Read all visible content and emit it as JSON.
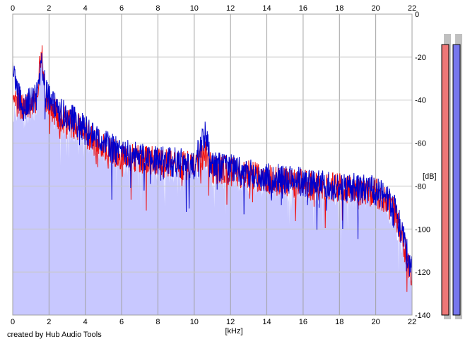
{
  "chart_data": {
    "type": "line",
    "title": "",
    "xlabel": "[kHz]",
    "ylabel": "[dB]",
    "xlim": [
      0,
      22
    ],
    "ylim": [
      -140,
      0
    ],
    "x_ticks": [
      "0",
      "2",
      "4",
      "6",
      "8",
      "10",
      "12",
      "14",
      "16",
      "18",
      "20",
      "22"
    ],
    "y_ticks": [
      "0",
      "-20",
      "-40",
      "-60",
      "-80",
      "-100",
      "-120",
      "-140"
    ],
    "grid": true,
    "fill_color": "#c8c8ff",
    "series": [
      {
        "color": "#ee1111",
        "x": [
          0,
          0.3,
          0.6,
          1.0,
          1.3,
          1.6,
          1.8,
          2.0,
          2.5,
          3.0,
          3.5,
          4.0,
          5.0,
          6.0,
          7.0,
          8.0,
          9.0,
          10.0,
          10.6,
          11.0,
          12.0,
          13.0,
          14.0,
          15.0,
          16.0,
          17.0,
          18.0,
          19.0,
          20.0,
          20.5,
          21.0,
          21.5,
          22.0
        ],
        "values": [
          -45,
          -40,
          -45,
          -42,
          -40,
          -17,
          -38,
          -42,
          -47,
          -50,
          -52,
          -55,
          -62,
          -66,
          -67,
          -69,
          -70,
          -71,
          -64,
          -72,
          -73,
          -75,
          -77,
          -78,
          -79,
          -80,
          -81,
          -82,
          -83,
          -86,
          -92,
          -105,
          -123
        ]
      },
      {
        "color": "#0000cc",
        "x": [
          0,
          0.3,
          0.6,
          1.0,
          1.3,
          1.6,
          1.8,
          2.0,
          2.5,
          3.0,
          3.5,
          4.0,
          5.0,
          6.0,
          7.0,
          8.0,
          9.0,
          10.0,
          10.6,
          11.0,
          12.0,
          13.0,
          14.0,
          15.0,
          16.0,
          17.0,
          18.0,
          19.0,
          20.0,
          20.5,
          21.0,
          21.5,
          22.0
        ],
        "values": [
          -25,
          -38,
          -43,
          -40,
          -38,
          -20,
          -36,
          -40,
          -45,
          -48,
          -50,
          -54,
          -60,
          -65,
          -66,
          -68,
          -69,
          -70,
          -56,
          -71,
          -72,
          -74,
          -76,
          -77,
          -78,
          -79,
          -80,
          -81,
          -82,
          -85,
          -90,
          -103,
          -120
        ]
      }
    ],
    "meters": [
      {
        "color": "#ee7777",
        "level": 0.95
      },
      {
        "color": "#7777ee",
        "level": 0.95
      }
    ]
  },
  "footer": {
    "credit": "created by Hub Audio Tools"
  }
}
